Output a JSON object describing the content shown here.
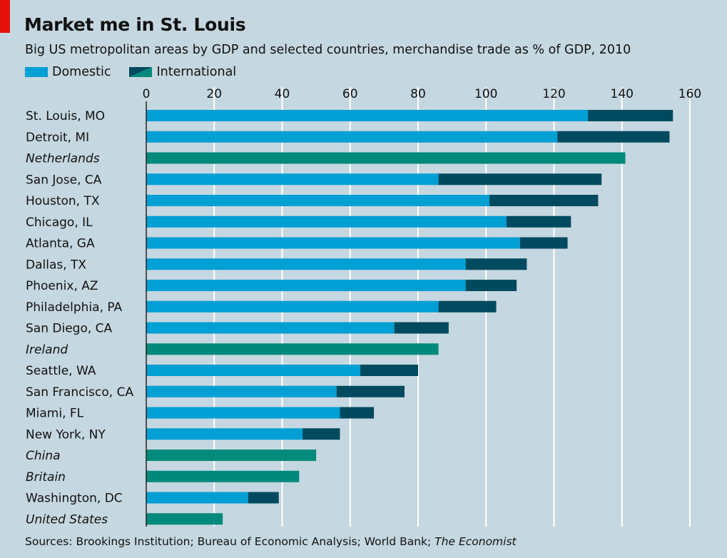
{
  "colors": {
    "background": "#c5d7e0",
    "domestic": "#009fd4",
    "international": "#004a5f",
    "country": "#008a7c",
    "gridline": "#ffffff",
    "brand_red": "#e3120b"
  },
  "footer": {
    "prefix": "Sources: Brookings Institution; Bureau of Economic Analysis; World Bank; ",
    "italic": "The Economist"
  },
  "chart_data": {
    "type": "bar",
    "orientation": "horizontal",
    "stacked": true,
    "title": "Market me in St. Louis",
    "subtitle": "Big US metropolitan areas by GDP and selected countries, merchandise trade as % of GDP, 2010",
    "xlabel": "",
    "ylabel": "",
    "xlim": [
      0,
      160
    ],
    "xticks": [
      0,
      20,
      40,
      60,
      80,
      100,
      120,
      140,
      160
    ],
    "grid": true,
    "legend": [
      "Domestic",
      "International"
    ],
    "categories": [
      "St. Louis, MO",
      "Detroit, MI",
      "Netherlands",
      "San Jose, CA",
      "Houston, TX",
      "Chicago, IL",
      "Atlanta, GA",
      "Dallas, TX",
      "Phoenix, AZ",
      "Philadelphia, PA",
      "San Diego, CA",
      "Ireland",
      "Seattle, WA",
      "San Francisco, CA",
      "Miami, FL",
      "New York, NY",
      "China",
      "Britain",
      "Washington, DC",
      "United States"
    ],
    "is_country": [
      false,
      false,
      true,
      false,
      false,
      false,
      false,
      false,
      false,
      false,
      false,
      true,
      false,
      false,
      false,
      false,
      true,
      true,
      false,
      true
    ],
    "series": [
      {
        "name": "Domestic",
        "values": [
          130,
          121,
          null,
          86,
          101,
          106,
          110,
          94,
          94,
          86,
          73,
          null,
          63,
          56,
          57,
          46,
          null,
          null,
          30,
          null
        ]
      },
      {
        "name": "International",
        "values": [
          25,
          33,
          null,
          48,
          32,
          19,
          14,
          18,
          15,
          17,
          16,
          null,
          17,
          20,
          10,
          11,
          null,
          null,
          9,
          null
        ]
      },
      {
        "name": "Country total",
        "values": [
          null,
          null,
          141,
          null,
          null,
          null,
          null,
          null,
          null,
          null,
          null,
          86,
          null,
          null,
          null,
          null,
          50,
          45,
          null,
          22.5
        ]
      }
    ]
  }
}
